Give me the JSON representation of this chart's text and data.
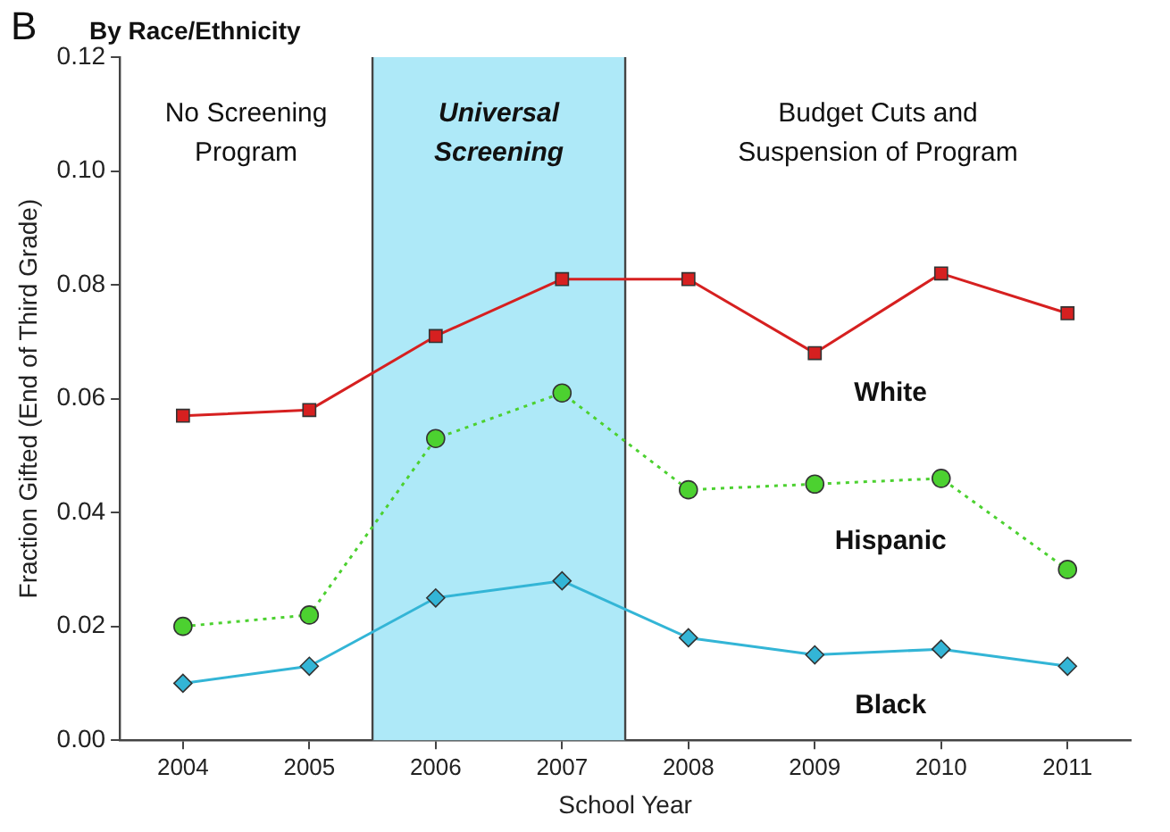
{
  "chart_data": {
    "type": "line",
    "title": "By Race/Ethnicity",
    "xlabel": "School Year",
    "ylabel": "Fraction Gifted (End of Third Grade)",
    "x": [
      2004,
      2005,
      2006,
      2007,
      2008,
      2009,
      2010,
      2011
    ],
    "xlim": [
      2003.5,
      2011.5
    ],
    "xticks": [
      2004,
      2005,
      2006,
      2007,
      2008,
      2009,
      2010,
      2011
    ],
    "ylim": [
      0,
      0.12
    ],
    "yticks": [
      {
        "value": 0,
        "label": "0.00"
      },
      {
        "value": 0.02,
        "label": "0.02"
      },
      {
        "value": 0.04,
        "label": "0.04"
      },
      {
        "value": 0.06,
        "label": "0.06"
      },
      {
        "value": 0.08,
        "label": "0.08"
      },
      {
        "value": 0.1,
        "label": "0.10"
      },
      {
        "value": 0.12,
        "label": "0.12"
      }
    ],
    "grid": false,
    "legend": false,
    "series": [
      {
        "name": "White",
        "color": "#d62020",
        "marker": "square",
        "line_style": "solid",
        "values": [
          0.057,
          0.058,
          0.071,
          0.081,
          0.081,
          0.068,
          0.082,
          0.075
        ]
      },
      {
        "name": "Hispanic",
        "color": "#4cd130",
        "marker": "circle",
        "line_style": "dotted",
        "values": [
          0.02,
          0.022,
          0.053,
          0.061,
          0.044,
          0.045,
          0.046,
          0.03
        ]
      },
      {
        "name": "Black",
        "color": "#33b5d6",
        "marker": "diamond",
        "line_style": "solid",
        "values": [
          0.01,
          0.013,
          0.025,
          0.028,
          0.018,
          0.015,
          0.016,
          0.013
        ]
      }
    ],
    "ref_lines": [
      {
        "axis": "x",
        "value": 2005.5,
        "color": "#444444"
      },
      {
        "axis": "x",
        "value": 2007.5,
        "color": "#444444"
      }
    ],
    "bands": [
      {
        "axis": "x",
        "from": 2005.5,
        "to": 2007.5,
        "label": "Universal Screening",
        "color": "#aee9f8"
      }
    ],
    "annotations": [
      "B",
      "No Screening Program",
      "Budget Cuts and Suspension of Program"
    ]
  }
}
